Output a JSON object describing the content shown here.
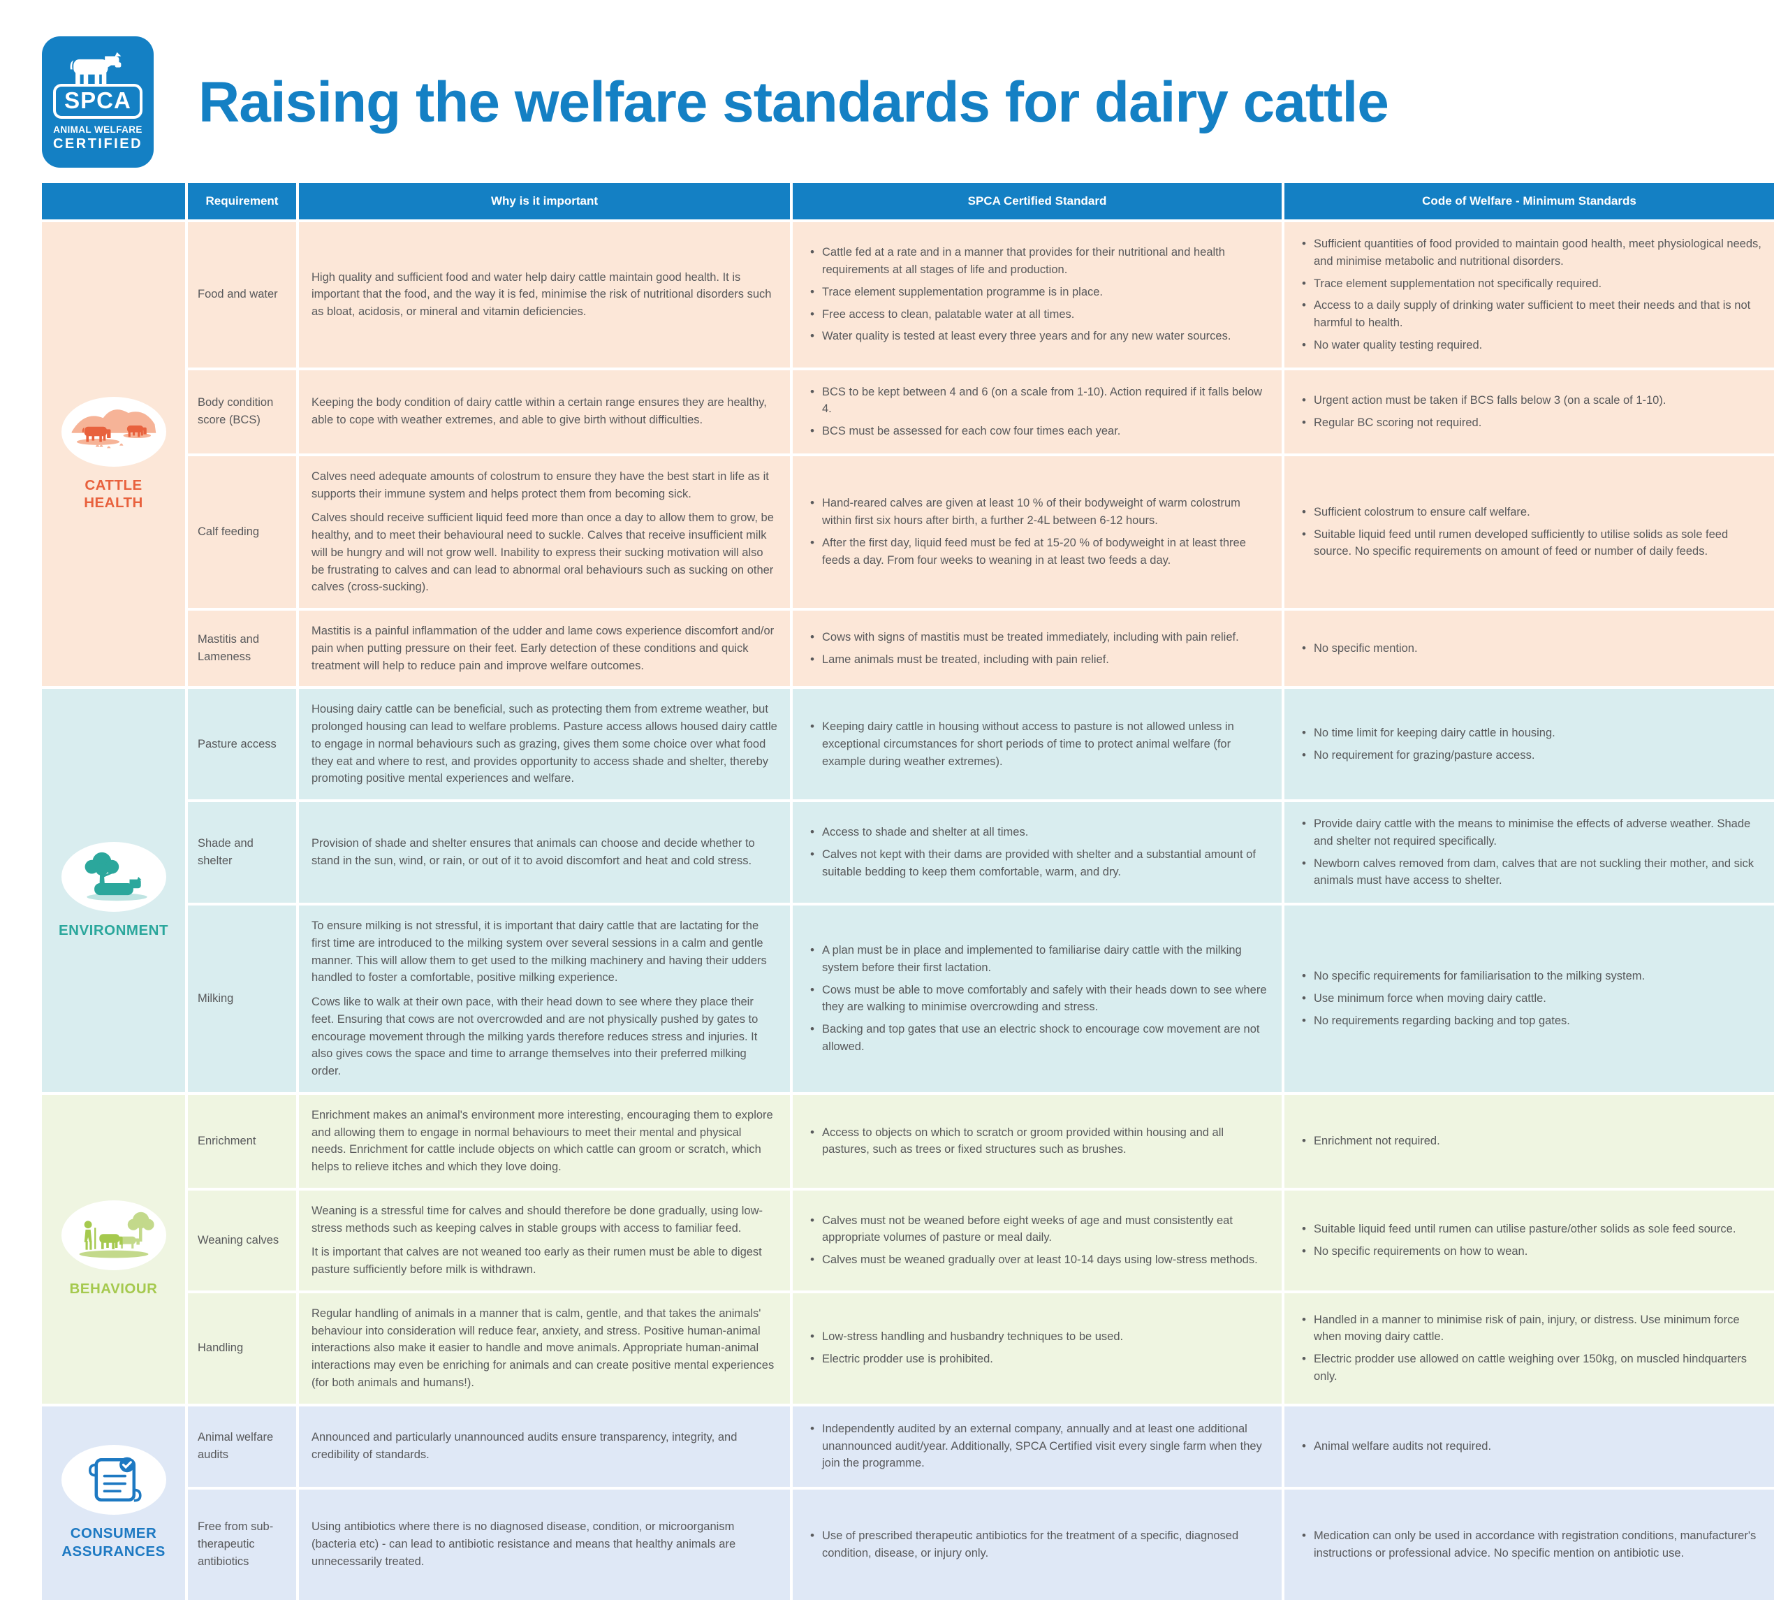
{
  "logo": {
    "brand": "SPCA",
    "line1": "ANIMAL WELFARE",
    "line2": "CERTIFIED"
  },
  "title": "Raising the welfare standards for dairy cattle",
  "colors": {
    "header_blue": "#1480c4",
    "cattle_health": "#e8613d",
    "environment": "#2ba79c",
    "behaviour": "#a5c94e",
    "consumer": "#1d79c2"
  },
  "table": {
    "headers": [
      "Requirement",
      "Why is it important",
      "SPCA Certified Standard",
      "Code of Welfare - Minimum Standards"
    ],
    "sections": [
      {
        "label": "CATTLE HEALTH",
        "color": "#e8613d",
        "bg": "#fce7d8",
        "icon": "cattle-grazing-icon",
        "rows": [
          {
            "requirement": "Food and water",
            "why": [
              "High quality and sufficient food and water help dairy cattle maintain good health. It is important that the food, and the way it is fed, minimise the risk of nutritional disorders such as bloat, acidosis, or mineral and vitamin deficiencies."
            ],
            "spca": [
              "Cattle fed at a rate and in a manner that provides for their nutritional and health requirements at all stages of life and production.",
              "Trace element supplementation programme is in place.",
              "Free access to clean, palatable water at all times.",
              "Water quality is tested at least every three years and for any new water sources."
            ],
            "code": [
              "Sufficient quantities of food provided to maintain good health, meet physiological needs, and minimise metabolic and nutritional disorders.",
              "Trace element supplementation not specifically required.",
              "Access to a daily supply of drinking water sufficient to meet their needs and that is not harmful to health.",
              "No water quality testing required."
            ]
          },
          {
            "requirement": "Body condition score (BCS)",
            "why": [
              "Keeping the body condition of dairy cattle within a certain range ensures they are healthy, able to cope with weather extremes, and able to give birth without difficulties."
            ],
            "spca": [
              "BCS to be kept between 4 and 6 (on a scale from 1-10). Action required if it falls below 4.",
              "BCS must be assessed for each cow four times each year."
            ],
            "code": [
              "Urgent action must be taken if BCS falls below 3 (on a scale of 1-10).",
              "Regular BC scoring not required."
            ]
          },
          {
            "requirement": "Calf feeding",
            "why": [
              "Calves need adequate amounts of colostrum to ensure they have the best start in life as it supports their immune system and helps protect them from becoming sick.",
              "Calves should receive sufficient liquid feed more than once a day to allow them to grow, be healthy, and to meet their behavioural need to suckle. Calves that receive insufficient milk will be hungry and will not grow well. Inability to express their sucking motivation will also be frustrating to calves and can lead to abnormal oral behaviours such as sucking on other calves (cross-sucking)."
            ],
            "spca": [
              "Hand-reared calves are given at least 10 % of their bodyweight of warm colostrum within first six hours after birth, a further 2-4L between 6-12 hours.",
              "After the first day, liquid feed must be fed at 15-20 % of bodyweight in at least three feeds a day. From four weeks to weaning in at least two feeds a day."
            ],
            "code": [
              "Sufficient colostrum to ensure calf welfare.",
              "Suitable liquid feed until rumen developed sufficiently to utilise solids as sole feed source. No specific requirements on amount of feed or number of daily feeds."
            ]
          },
          {
            "requirement": "Mastitis and Lameness",
            "why": [
              "Mastitis is a painful inflammation of the udder and lame cows experience discomfort and/or pain when putting pressure on their feet. Early detection of these conditions and quick treatment will help to reduce pain and improve welfare outcomes."
            ],
            "spca": [
              "Cows with signs of mastitis must be treated immediately, including with pain relief.",
              "Lame animals must be treated, including with pain relief."
            ],
            "code": [
              "No specific mention."
            ]
          }
        ]
      },
      {
        "label": "ENVIRONMENT",
        "color": "#2ba79c",
        "bg": "#d9edef",
        "icon": "tree-and-cow-icon",
        "rows": [
          {
            "requirement": "Pasture access",
            "why": [
              "Housing dairy cattle can be beneficial, such as protecting them from extreme weather, but prolonged housing can lead to welfare problems. Pasture access allows housed dairy cattle to engage in normal behaviours such as grazing, gives them some choice over what food they eat and where to rest, and provides opportunity to access shade and shelter, thereby promoting positive mental experiences and welfare."
            ],
            "spca": [
              "Keeping dairy cattle in housing without access to pasture is not allowed unless in exceptional circumstances for short periods of time to protect animal welfare (for example during weather extremes)."
            ],
            "code": [
              "No time limit for keeping dairy cattle in housing.",
              "No requirement for grazing/pasture access."
            ]
          },
          {
            "requirement": "Shade and shelter",
            "why": [
              "Provision of shade and shelter ensures that animals can choose and decide whether to stand in the sun, wind, or rain, or out of it to avoid discomfort and heat and cold stress."
            ],
            "spca": [
              "Access to shade and shelter at all times.",
              "Calves not kept with their dams are provided with shelter and a substantial amount of suitable bedding to keep them comfortable, warm, and dry."
            ],
            "code": [
              "Provide dairy cattle with the means to minimise the effects of adverse weather. Shade and shelter not required specifically.",
              "Newborn calves removed from dam, calves that are not suckling their mother, and sick animals must have access to shelter."
            ]
          },
          {
            "requirement": "Milking",
            "why": [
              "To ensure milking is not stressful, it is important that dairy cattle that are lactating for the first time are introduced to the milking system over several sessions in a calm and gentle manner. This will allow them to get used to the milking machinery and having their udders handled to foster a comfortable, positive milking experience.",
              "Cows like to walk at their own pace, with their head down to see where they place their feet. Ensuring that cows are not overcrowded and are not physically pushed by gates to encourage movement through the milking yards therefore reduces stress and injuries. It also gives cows the space and time to arrange themselves into their preferred milking order."
            ],
            "spca": [
              "A plan must be in place and implemented to familiarise dairy cattle with the milking system before their first lactation.",
              "Cows must be able to move comfortably and safely with their heads down to see where they are walking to minimise overcrowding and stress.",
              "Backing and top gates that use an electric shock to encourage cow movement are not allowed."
            ],
            "code": [
              "No specific requirements for familiarisation to the milking system.",
              "Use minimum force when moving dairy cattle.",
              "No requirements regarding backing and top gates."
            ]
          }
        ]
      },
      {
        "label": "BEHAVIOUR",
        "color": "#a5c94e",
        "bg": "#eff5e1",
        "icon": "farmer-and-cattle-icon",
        "rows": [
          {
            "requirement": "Enrichment",
            "why": [
              "Enrichment makes an animal's environment more interesting, encouraging them to explore and allowing them to engage in normal behaviours to meet their mental and physical needs. Enrichment for cattle include objects on which cattle can groom or scratch, which helps to relieve itches and which they love doing."
            ],
            "spca": [
              "Access to objects on which to scratch or groom provided within housing and all pastures, such as trees or fixed structures such as brushes."
            ],
            "code": [
              "Enrichment not required."
            ]
          },
          {
            "requirement": "Weaning calves",
            "why": [
              "Weaning is a stressful time for calves and should therefore be done gradually, using low-stress methods such as keeping calves in stable groups with access to familiar feed.",
              "It is important that calves are not weaned too early as their rumen must be able to digest pasture sufficiently before milk is withdrawn."
            ],
            "spca": [
              "Calves must not be weaned before eight weeks of age and must consistently eat appropriate volumes of pasture or meal daily.",
              "Calves must be weaned gradually over at least 10-14 days using low-stress methods."
            ],
            "code": [
              "Suitable liquid feed until rumen can utilise pasture/other solids as sole feed source.",
              "No specific requirements on how to wean."
            ]
          },
          {
            "requirement": "Handling",
            "why": [
              "Regular handling of animals in a manner that is calm, gentle, and that takes the animals' behaviour into consideration will reduce fear, anxiety, and stress. Positive human-animal interactions also make it easier to handle and move animals. Appropriate human-animal interactions may even be enriching for animals and can create positive mental experiences (for both animals and humans!)."
            ],
            "spca": [
              "Low-stress handling and husbandry techniques to be used.",
              "Electric prodder use is prohibited."
            ],
            "code": [
              "Handled in a manner to minimise risk of pain, injury, or distress. Use minimum force when moving dairy cattle.",
              "Electric prodder use allowed on cattle weighing over 150kg, on muscled hindquarters only."
            ]
          }
        ]
      },
      {
        "label": "CONSUMER ASSURANCES",
        "color": "#1d79c2",
        "bg": "#dfe8f6",
        "icon": "scroll-checklist-icon",
        "rows": [
          {
            "requirement": "Animal welfare audits",
            "why": [
              "Announced and particularly unannounced audits ensure transparency, integrity, and credibility of standards."
            ],
            "spca": [
              "Independently audited by an external company, annually and at least one additional unannounced audit/year. Additionally, SPCA Certified visit every single farm when they join the programme."
            ],
            "code": [
              "Animal welfare audits not required."
            ]
          },
          {
            "requirement": "Free from sub-therapeutic antibiotics",
            "why": [
              "Using antibiotics where there is no diagnosed disease, condition, or microorganism (bacteria etc) - can lead to antibiotic resistance and means that healthy animals are unnecessarily treated."
            ],
            "spca": [
              "Use of prescribed therapeutic antibiotics for the treatment of a specific, diagnosed condition, disease, or injury only."
            ],
            "code": [
              "Medication can only be used in accordance with registration conditions, manufacturer's instructions or professional advice. No specific mention on antibiotic use."
            ]
          }
        ]
      }
    ]
  }
}
